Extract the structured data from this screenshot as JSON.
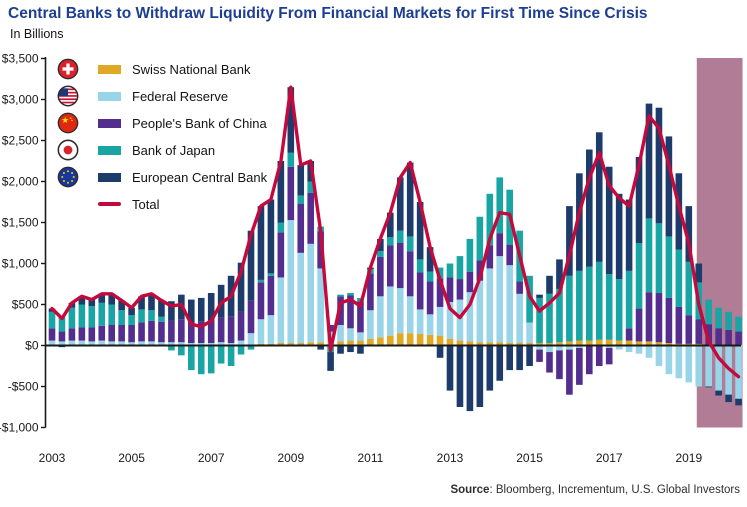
{
  "header": {
    "title": "Central Banks to Withdraw Liquidity From Financial Markets for First Time Since Crisis",
    "subtitle": "In Billions"
  },
  "source": {
    "label": "Source",
    "rest": ": Bloomberg, Incrementum, U.S. Global Investors"
  },
  "colors": {
    "title_blue": "#1d3e92",
    "snb_gold": "#dfa827",
    "fed_lightblue": "#99d4e8",
    "pboc_purple": "#532e8e",
    "boj_teal": "#18a5a4",
    "ecb_navy": "#1d3c6b",
    "total_red": "#c40a3c",
    "highlight_band": "#b17c95",
    "axis_black": "#1a1a1a"
  },
  "legend": {
    "position": "top-left",
    "items": [
      {
        "label": "Swiss National Bank",
        "color": "#dfa827",
        "flag": "switzerland",
        "marker": "bar"
      },
      {
        "label": "Federal Reserve",
        "color": "#99d4e8",
        "flag": "united-states",
        "marker": "bar"
      },
      {
        "label": "People's Bank of China",
        "color": "#532e8e",
        "flag": "china",
        "marker": "bar"
      },
      {
        "label": "Bank of Japan",
        "color": "#18a5a4",
        "flag": "japan",
        "marker": "bar"
      },
      {
        "label": "European Central Bank",
        "color": "#1d3c6b",
        "flag": "european-union",
        "marker": "bar"
      },
      {
        "label": "Total",
        "color": "#c40a3c",
        "flag": null,
        "marker": "line"
      }
    ]
  },
  "chart_data": {
    "type": "bar",
    "subtype": "stacked-bars-with-total-line",
    "units": "USD billions (12-month liquidity injection)",
    "x_frequency": "quarterly",
    "x_start": 2003,
    "x_step": 0.25,
    "x_count": 70,
    "ylim": [
      -1000,
      3500
    ],
    "y_tick_step": 500,
    "grid": false,
    "y_ticks": {
      "values": [
        3500,
        3000,
        2500,
        2000,
        1500,
        1000,
        500,
        0,
        -500,
        -1000
      ],
      "labels": [
        "$3,500",
        "$3,000",
        "$2,500",
        "$2,000",
        "$1,500",
        "$1,000",
        "$500",
        "$0",
        "-$500",
        "-$1,000"
      ]
    },
    "x_ticks": {
      "values": [
        2003,
        2005,
        2007,
        2009,
        2011,
        2013,
        2015,
        2017,
        2019
      ],
      "labels": [
        "2003",
        "2005",
        "2007",
        "2009",
        "2011",
        "2013",
        "2015",
        "2017",
        "2019"
      ]
    },
    "highlight_region": {
      "x_start": 2019.2,
      "x_end": 2020.35,
      "color": "#b17c95"
    },
    "series": [
      {
        "name": "Swiss National Bank",
        "color": "#dfa827",
        "values": [
          0,
          0,
          0,
          0,
          0,
          0,
          0,
          0,
          0,
          0,
          0,
          0,
          0,
          0,
          0,
          0,
          0,
          0,
          0,
          0,
          0,
          20,
          20,
          30,
          30,
          30,
          40,
          40,
          20,
          50,
          60,
          60,
          80,
          100,
          120,
          150,
          150,
          140,
          130,
          120,
          80,
          60,
          50,
          40,
          40,
          40,
          30,
          30,
          30,
          30,
          30,
          40,
          50,
          60,
          60,
          70,
          70,
          60,
          60,
          50,
          50,
          40,
          30,
          20,
          20,
          20,
          10,
          10,
          10,
          10
        ]
      },
      {
        "name": "Federal Reserve",
        "color": "#99d4e8",
        "values": [
          60,
          50,
          60,
          60,
          50,
          60,
          50,
          50,
          40,
          50,
          50,
          40,
          40,
          40,
          30,
          30,
          30,
          40,
          30,
          60,
          150,
          300,
          350,
          800,
          1500,
          1100,
          1200,
          900,
          150,
          200,
          150,
          100,
          350,
          500,
          600,
          550,
          450,
          300,
          250,
          350,
          450,
          500,
          600,
          750,
          900,
          1050,
          950,
          600,
          250,
          -50,
          -80,
          -60,
          -50,
          -30,
          0,
          0,
          -30,
          -50,
          -80,
          -100,
          -150,
          -250,
          -350,
          -400,
          -450,
          -500,
          -500,
          -550,
          -600,
          -650
        ]
      },
      {
        "name": "People's Bank of China",
        "color": "#532e8e",
        "values": [
          150,
          120,
          150,
          160,
          170,
          180,
          200,
          200,
          210,
          230,
          250,
          250,
          260,
          280,
          250,
          260,
          280,
          300,
          320,
          350,
          400,
          450,
          480,
          550,
          650,
          600,
          620,
          450,
          80,
          350,
          400,
          380,
          450,
          480,
          500,
          550,
          550,
          450,
          400,
          350,
          300,
          250,
          250,
          250,
          280,
          280,
          250,
          150,
          0,
          -150,
          -250,
          -350,
          -550,
          -450,
          -350,
          -250,
          -200,
          0,
          150,
          400,
          600,
          600,
          550,
          450,
          350,
          300,
          250,
          200,
          180,
          160
        ]
      },
      {
        "name": "Bank of Japan",
        "color": "#18a5a4",
        "values": [
          200,
          180,
          250,
          280,
          260,
          280,
          250,
          180,
          120,
          160,
          130,
          60,
          -60,
          -120,
          -300,
          -350,
          -340,
          -220,
          -250,
          -110,
          -50,
          30,
          30,
          120,
          170,
          100,
          140,
          60,
          -80,
          20,
          30,
          40,
          50,
          70,
          100,
          150,
          180,
          160,
          120,
          130,
          170,
          280,
          400,
          530,
          630,
          680,
          670,
          620,
          570,
          550,
          600,
          650,
          800,
          850,
          900,
          950,
          800,
          750,
          700,
          800,
          900,
          850,
          750,
          700,
          650,
          450,
          300,
          250,
          220,
          180
        ]
      },
      {
        "name": "European Central Bank",
        "color": "#1d3c6b",
        "values": [
          40,
          -20,
          60,
          100,
          80,
          110,
          130,
          120,
          90,
          160,
          200,
          200,
          240,
          300,
          280,
          290,
          330,
          400,
          500,
          600,
          850,
          900,
          900,
          750,
          800,
          370,
          250,
          -50,
          -230,
          -100,
          -80,
          -100,
          20,
          150,
          300,
          650,
          900,
          700,
          300,
          -150,
          -550,
          -750,
          -800,
          -750,
          -550,
          -430,
          -300,
          -300,
          -250,
          40,
          220,
          360,
          850,
          1190,
          1430,
          1580,
          1310,
          1040,
          870,
          1050,
          1400,
          1410,
          1220,
          930,
          680,
          230,
          -10,
          -60,
          -90,
          -80
        ]
      }
    ],
    "total_line": {
      "name": "Total",
      "color": "#c40a3c",
      "values": [
        450,
        330,
        520,
        600,
        560,
        630,
        630,
        550,
        460,
        600,
        630,
        550,
        480,
        500,
        260,
        230,
        300,
        520,
        600,
        900,
        1350,
        1700,
        1780,
        2250,
        3150,
        2200,
        2250,
        1400,
        -60,
        520,
        560,
        480,
        950,
        1300,
        1620,
        2050,
        2230,
        1750,
        1200,
        800,
        450,
        340,
        500,
        820,
        1300,
        1620,
        1600,
        1100,
        600,
        420,
        520,
        640,
        1100,
        1620,
        2040,
        2350,
        1950,
        1800,
        1700,
        2200,
        2800,
        2650,
        2200,
        1700,
        1250,
        500,
        50,
        -150,
        -280,
        -380
      ]
    }
  }
}
